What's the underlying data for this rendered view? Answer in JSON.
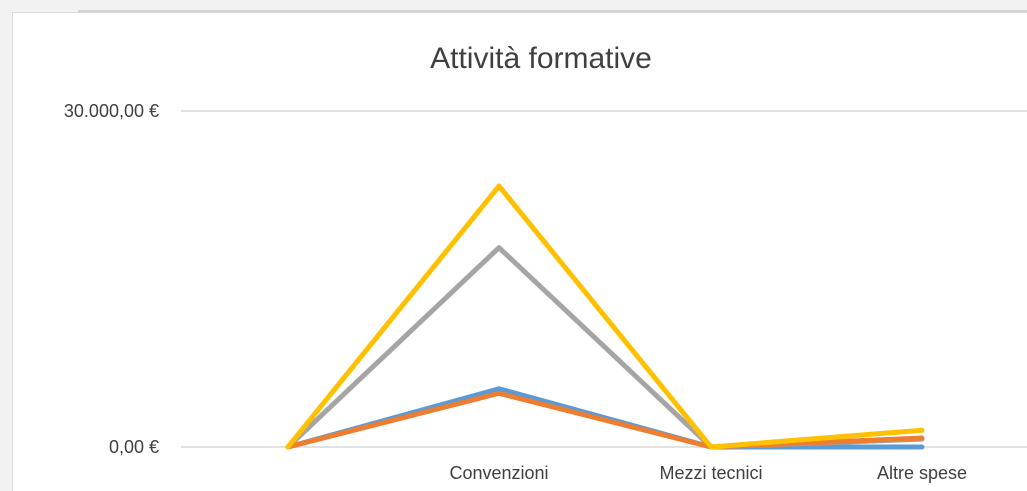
{
  "chart_data": {
    "type": "line",
    "title": "Attività formative",
    "xlabel": "",
    "ylabel": "",
    "categories": [
      "",
      "Convenzioni",
      "Mezzi tecnici",
      "Altre spese"
    ],
    "ylim": [
      0,
      30000
    ],
    "y_ticks": [
      {
        "value": 30000,
        "label": "30.000,00 €"
      },
      {
        "value": 0,
        "label": "0,00 €"
      }
    ],
    "grid": true,
    "legend": "none",
    "series": [
      {
        "color": "#5b9bd5",
        "values": [
          0,
          5200,
          0,
          0
        ]
      },
      {
        "color": "#a5a5a5",
        "values": [
          0,
          17800,
          0,
          700
        ]
      },
      {
        "color": "#ed7d31",
        "values": [
          0,
          4800,
          0,
          800
        ]
      },
      {
        "color": "#ffc000",
        "values": [
          0,
          23300,
          0,
          1500
        ]
      }
    ]
  }
}
